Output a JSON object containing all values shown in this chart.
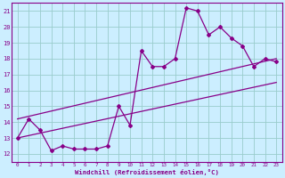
{
  "xlabel": "Windchill (Refroidissement éolien,°C)",
  "xlim": [
    -0.5,
    23.5
  ],
  "ylim": [
    11.5,
    21.5
  ],
  "yticks": [
    12,
    13,
    14,
    15,
    16,
    17,
    18,
    19,
    20,
    21
  ],
  "xticks": [
    0,
    1,
    2,
    3,
    4,
    5,
    6,
    7,
    8,
    9,
    10,
    11,
    12,
    13,
    14,
    15,
    16,
    17,
    18,
    19,
    20,
    21,
    22,
    23
  ],
  "bg_color": "#cceeff",
  "line_color": "#880088",
  "grid_color": "#99cccc",
  "zigzag": [
    [
      0,
      13.0
    ],
    [
      1,
      14.2
    ],
    [
      2,
      13.5
    ],
    [
      3,
      12.2
    ],
    [
      4,
      12.5
    ],
    [
      5,
      12.3
    ],
    [
      6,
      12.3
    ],
    [
      7,
      12.3
    ],
    [
      8,
      12.5
    ],
    [
      9,
      15.0
    ],
    [
      10,
      13.8
    ],
    [
      11,
      18.5
    ],
    [
      12,
      17.5
    ],
    [
      13,
      17.5
    ],
    [
      14,
      18.0
    ],
    [
      15,
      21.2
    ],
    [
      16,
      21.0
    ],
    [
      17,
      19.5
    ],
    [
      18,
      20.0
    ],
    [
      19,
      19.3
    ],
    [
      20,
      18.8
    ],
    [
      21,
      17.5
    ],
    [
      22,
      18.0
    ],
    [
      23,
      17.8
    ]
  ],
  "line_upper": [
    [
      0,
      14.2
    ],
    [
      23,
      18.0
    ]
  ],
  "line_lower": [
    [
      0,
      13.0
    ],
    [
      23,
      16.5
    ]
  ]
}
